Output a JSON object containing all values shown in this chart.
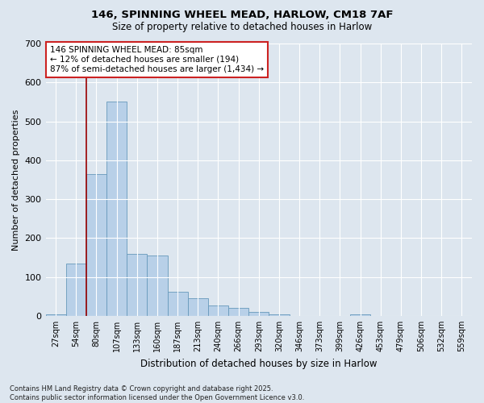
{
  "title1": "146, SPINNING WHEEL MEAD, HARLOW, CM18 7AF",
  "title2": "Size of property relative to detached houses in Harlow",
  "xlabel": "Distribution of detached houses by size in Harlow",
  "ylabel": "Number of detached properties",
  "categories": [
    "27sqm",
    "54sqm",
    "80sqm",
    "107sqm",
    "133sqm",
    "160sqm",
    "187sqm",
    "213sqm",
    "240sqm",
    "266sqm",
    "293sqm",
    "320sqm",
    "346sqm",
    "373sqm",
    "399sqm",
    "426sqm",
    "453sqm",
    "479sqm",
    "506sqm",
    "532sqm",
    "559sqm"
  ],
  "values": [
    5,
    135,
    365,
    550,
    160,
    155,
    63,
    45,
    27,
    20,
    10,
    5,
    0,
    0,
    0,
    5,
    0,
    0,
    0,
    0,
    0
  ],
  "bar_color": "#b8d0e8",
  "bar_edge_color": "#6699bb",
  "vline_x": 1.5,
  "vline_color": "#990000",
  "annotation_text": "146 SPINNING WHEEL MEAD: 85sqm\n← 12% of detached houses are smaller (194)\n87% of semi-detached houses are larger (1,434) →",
  "annotation_box_color": "#ffffff",
  "annotation_box_edge": "#cc2222",
  "ylim": [
    0,
    700
  ],
  "yticks": [
    0,
    100,
    200,
    300,
    400,
    500,
    600,
    700
  ],
  "fig_bg_color": "#dde6ef",
  "plot_bg_color": "#dde6ef",
  "footer": "Contains HM Land Registry data © Crown copyright and database right 2025.\nContains public sector information licensed under the Open Government Licence v3.0."
}
